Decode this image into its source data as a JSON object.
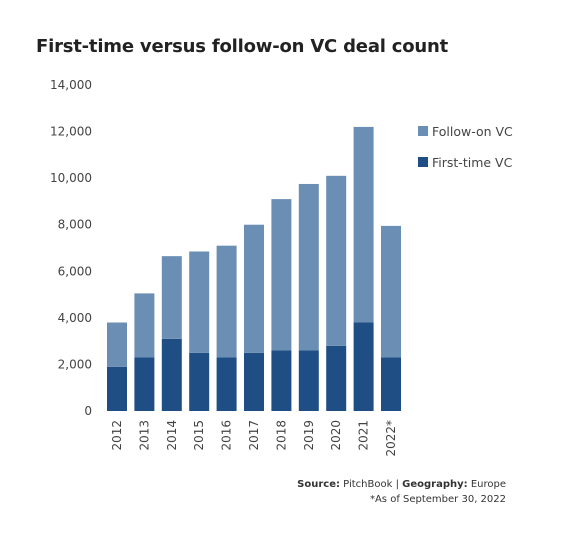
{
  "chart_data": {
    "type": "bar",
    "stacked": true,
    "title": "First-time versus follow-on VC deal count",
    "categories": [
      "2012",
      "2013",
      "2014",
      "2015",
      "2016",
      "2017",
      "2018",
      "2019",
      "2020",
      "2021",
      "2022*"
    ],
    "series": [
      {
        "name": "First-time VC",
        "color": "#1f4e85",
        "values": [
          1900,
          2300,
          3100,
          2500,
          2300,
          2500,
          2600,
          2600,
          2800,
          3800,
          2300
        ]
      },
      {
        "name": "Follow-on VC",
        "color": "#6b8fb4",
        "values": [
          1900,
          2750,
          3550,
          4350,
          4800,
          5500,
          6500,
          7150,
          7300,
          8400,
          5650
        ]
      }
    ],
    "legend_order": [
      "Follow-on VC",
      "First-time VC"
    ],
    "y_ticks": [
      "14,000",
      "12,000",
      "10,000",
      "8,000",
      "6,000",
      "4,000",
      "2,000",
      "0"
    ],
    "ylim": [
      0,
      14000
    ],
    "grid": false,
    "legend_position": "right"
  },
  "footer": {
    "source_label": "Source:",
    "source_value": "PitchBook",
    "separator": " | ",
    "geography_label": "Geography:",
    "geography_value": "Europe",
    "note": "*As of September 30, 2022"
  }
}
